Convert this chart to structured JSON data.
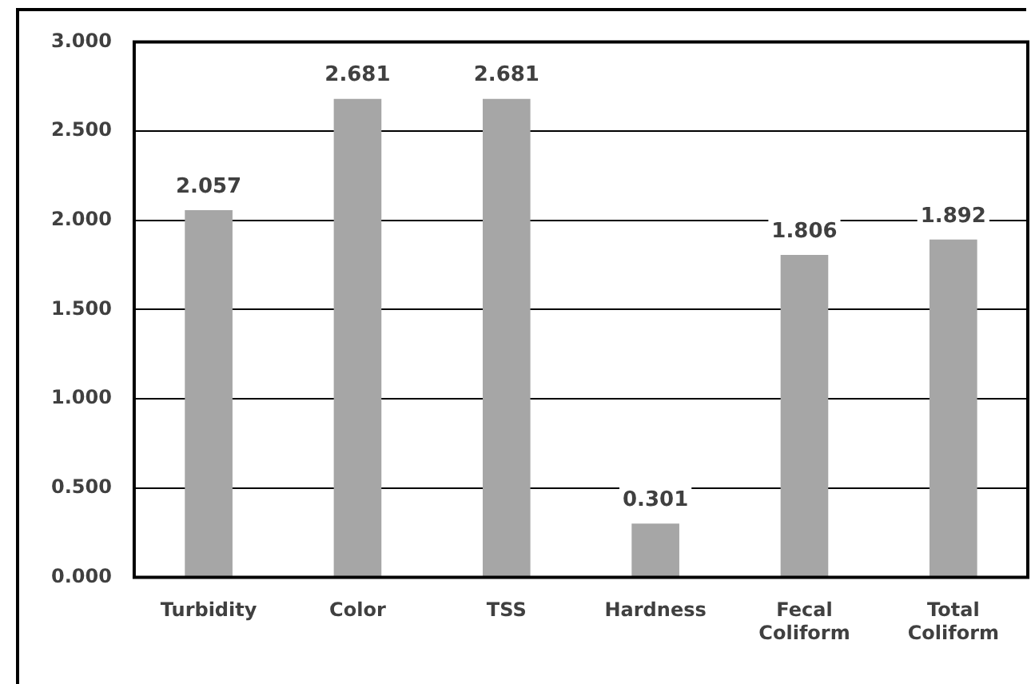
{
  "chart_data": {
    "type": "bar",
    "categories": [
      "Turbidity",
      "Color",
      "TSS",
      "Hardness",
      "Fecal Coliform",
      "Total Coliform"
    ],
    "values": [
      2.057,
      2.681,
      2.681,
      0.301,
      1.806,
      1.892
    ],
    "color": "#a6a6a6",
    "ylim": [
      0,
      3
    ],
    "yticks": [
      {
        "value": 0,
        "label": "0.000"
      },
      {
        "value": 0.5,
        "label": "0.500"
      },
      {
        "value": 1,
        "label": "1.000"
      },
      {
        "value": 1.5,
        "label": "1.500"
      },
      {
        "value": 2,
        "label": "2.000"
      },
      {
        "value": 2.5,
        "label": "2.500"
      },
      {
        "value": 3,
        "label": "3.000"
      }
    ],
    "grid": "y",
    "data_labels": true
  }
}
